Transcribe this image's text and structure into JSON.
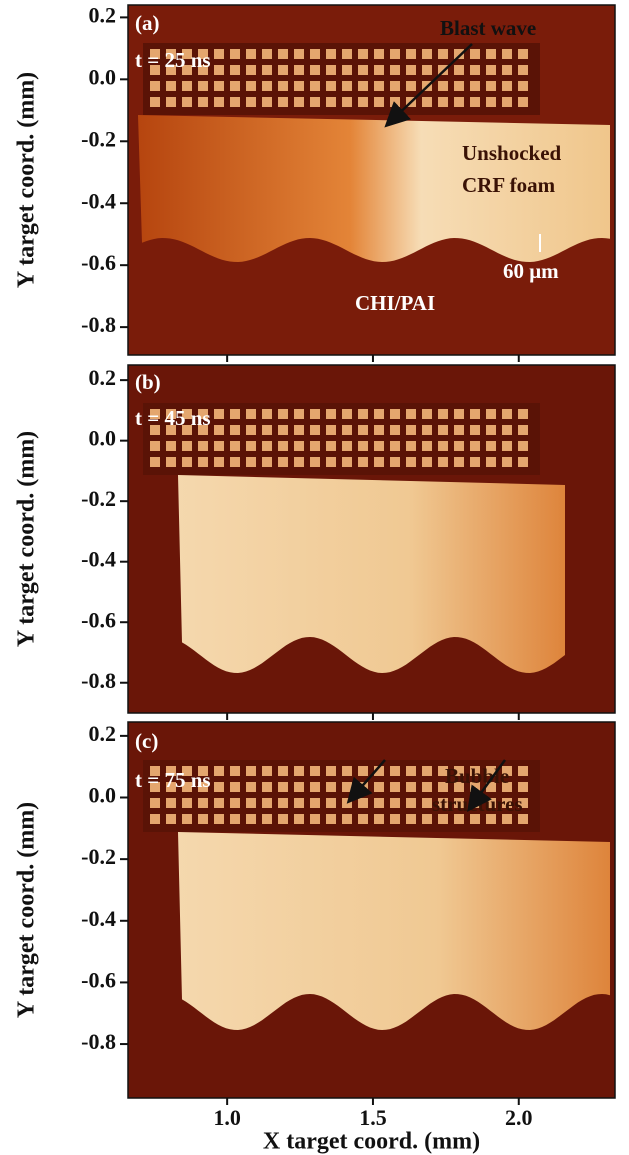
{
  "chart_data": [
    {
      "type": "image",
      "ylabel": "Y target coord. (mm)",
      "ylim": [
        -0.89,
        0.24
      ],
      "yticks": [
        0.2,
        {
          "value": 0,
          "label": "0.0"
        },
        -0.2,
        -0.4,
        -0.6,
        -0.8
      ],
      "xlim": [
        0.66,
        2.33
      ],
      "xticks": [
        {
          "value": 1,
          "label": "1.0"
        },
        1.5,
        {
          "value": 2,
          "label": "2.0"
        }
      ],
      "annotations": [
        "(a)",
        "t = 25 ns",
        "Blast wave",
        "Unshocked",
        "CRF foam",
        "60 μm",
        "CHI/PAI"
      ]
    },
    {
      "type": "image",
      "ylabel": "Y target coord. (mm)",
      "ylim": [
        -0.9,
        0.25
      ],
      "yticks": [
        0.2,
        {
          "value": 0,
          "label": "0.0"
        },
        -0.2,
        -0.4,
        -0.6,
        -0.8
      ],
      "xlim": [
        0.66,
        2.33
      ],
      "xticks": [
        {
          "value": 1,
          "label": "1.0"
        },
        1.5,
        {
          "value": 2,
          "label": "2.0"
        }
      ],
      "annotations": [
        "(b)",
        "t = 45 ns"
      ]
    },
    {
      "type": "image",
      "ylabel": "Y target coord. (mm)",
      "xlabel": "X target coord. (mm)",
      "ylim": [
        -0.975,
        0.245
      ],
      "yticks": [
        0.2,
        {
          "value": 0,
          "label": "0.0"
        },
        -0.2,
        -0.4,
        -0.6,
        -0.8
      ],
      "xlim": [
        0.66,
        2.33
      ],
      "xticks": [
        {
          "value": 1,
          "label": "1.0"
        },
        1.5,
        {
          "value": 2,
          "label": "2.0"
        }
      ],
      "annotations": [
        "(c)",
        "t = 75 ns",
        "Bubble",
        "structures"
      ]
    }
  ]
}
